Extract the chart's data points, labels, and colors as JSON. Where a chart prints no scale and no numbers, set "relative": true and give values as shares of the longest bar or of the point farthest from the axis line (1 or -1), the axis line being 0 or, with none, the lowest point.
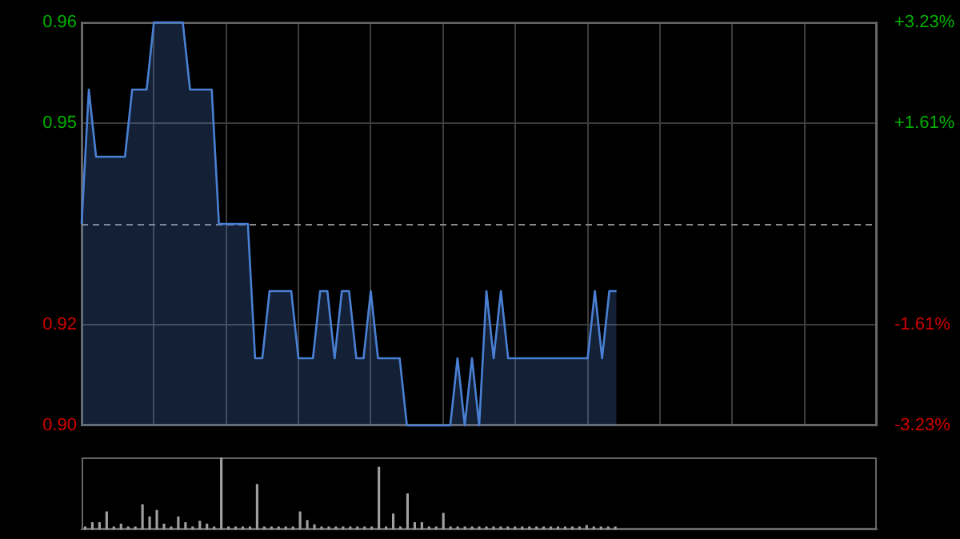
{
  "chart_data": [
    {
      "type": "area",
      "categories": [
        null,
        null,
        null,
        null,
        null,
        null,
        null,
        null,
        null,
        null,
        null,
        null,
        null,
        null,
        null,
        null,
        null,
        null,
        null,
        null,
        null,
        null,
        null,
        null,
        null,
        null,
        null,
        null,
        null,
        null,
        null,
        null,
        null,
        null,
        null,
        null,
        null,
        null,
        null,
        null,
        null,
        null,
        null,
        null,
        null,
        null,
        null,
        null,
        null,
        null,
        null,
        null,
        null,
        null,
        null,
        null,
        null,
        null,
        null,
        null,
        null,
        null,
        null,
        null,
        null,
        null,
        null,
        null,
        null,
        null,
        null,
        null,
        null,
        null,
        null,
        null,
        null,
        null,
        null,
        null,
        null,
        null,
        null,
        null,
        null,
        null,
        null,
        null,
        null,
        null,
        null,
        null,
        null,
        null,
        null,
        null,
        null,
        null,
        null,
        null,
        null,
        null,
        null,
        null,
        null,
        null,
        null,
        null,
        null,
        null,
        null
      ],
      "series": [
        {
          "color": "#4a80d4",
          "values": [
            0.93,
            0.95,
            0.94,
            0.94,
            0.94,
            0.94,
            0.94,
            0.95,
            0.95,
            0.95,
            0.96,
            0.96,
            0.96,
            0.96,
            0.96,
            0.95,
            0.95,
            0.95,
            0.95,
            0.93,
            0.93,
            0.93,
            0.93,
            0.93,
            0.91,
            0.91,
            0.92,
            0.92,
            0.92,
            0.92,
            0.91,
            0.91,
            0.91,
            0.92,
            0.92,
            0.91,
            0.92,
            0.92,
            0.91,
            0.91,
            0.92,
            0.91,
            0.91,
            0.91,
            0.91,
            0.9,
            0.9,
            0.9,
            0.9,
            0.9,
            0.9,
            0.9,
            0.91,
            0.9,
            0.91,
            0.9,
            0.92,
            0.91,
            0.92,
            0.91,
            0.91,
            0.91,
            0.91,
            0.91,
            0.91,
            0.91,
            0.91,
            0.91,
            0.91,
            0.91,
            0.91,
            0.92,
            0.91,
            0.92,
            0.92,
            null,
            null,
            null,
            null,
            null,
            null,
            null,
            null,
            null,
            null,
            null,
            null,
            null,
            null,
            null,
            null,
            null,
            null,
            null,
            null,
            null,
            null,
            null,
            null,
            null,
            null,
            null,
            null,
            null,
            null,
            null,
            null,
            null,
            null,
            null,
            null
          ]
        }
      ],
      "ylim": [
        0.9,
        0.96
      ],
      "yticks": [
        {
          "value": 0.96,
          "label": "0.96"
        },
        {
          "value": 0.945,
          "label": "0.95"
        },
        {
          "value": 0.915,
          "label": "0.92"
        },
        {
          "value": 0.9,
          "label": "0.90"
        }
      ],
      "y2lim": [
        -3.23,
        3.23
      ],
      "y2ticks": [
        {
          "value": 3.23,
          "label": "+3.23%"
        },
        {
          "value": 1.61,
          "label": "+1.61%"
        },
        {
          "value": -1.61,
          "label": "-1.61%"
        },
        {
          "value": -3.23,
          "label": "-3.23%"
        }
      ],
      "ref_lines": [
        {
          "axis": "y",
          "value": 0.93
        }
      ],
      "grid": true
    },
    {
      "type": "bar",
      "relative": true,
      "categories": [
        null,
        null,
        null,
        null,
        null,
        null,
        null,
        null,
        null,
        null,
        null,
        null,
        null,
        null,
        null,
        null,
        null,
        null,
        null,
        null,
        null,
        null,
        null,
        null,
        null,
        null,
        null,
        null,
        null,
        null,
        null,
        null,
        null,
        null,
        null,
        null,
        null,
        null,
        null,
        null,
        null,
        null,
        null,
        null,
        null,
        null,
        null,
        null,
        null,
        null,
        null,
        null,
        null,
        null,
        null,
        null,
        null,
        null,
        null,
        null,
        null,
        null,
        null,
        null,
        null,
        null,
        null,
        null,
        null,
        null,
        null,
        null,
        null,
        null,
        null,
        null,
        null,
        null,
        null,
        null,
        null,
        null,
        null,
        null,
        null,
        null,
        null,
        null,
        null,
        null,
        null,
        null,
        null,
        null,
        null,
        null,
        null,
        null,
        null,
        null,
        null,
        null,
        null,
        null,
        null,
        null,
        null,
        null,
        null,
        null,
        null
      ],
      "series": [
        {
          "color": "#a0a0a0",
          "values": [
            0.04,
            0.1,
            0.1,
            0.25,
            0.04,
            0.08,
            0.04,
            0.04,
            0.35,
            0.18,
            0.27,
            0.08,
            0.04,
            0.18,
            0.1,
            0.04,
            0.12,
            0.08,
            0.04,
            1,
            0.04,
            0.04,
            0.04,
            0.04,
            0.63,
            0.04,
            0.04,
            0.04,
            0.04,
            0.04,
            0.25,
            0.13,
            0.07,
            0.04,
            0.04,
            0.04,
            0.04,
            0.04,
            0.04,
            0.04,
            0.04,
            0.87,
            0.04,
            0.22,
            0.04,
            0.5,
            0.1,
            0.1,
            0.04,
            0.04,
            0.23,
            0.04,
            0.04,
            0.04,
            0.04,
            0.04,
            0.04,
            0.04,
            0.04,
            0.04,
            0.04,
            0.04,
            0.04,
            0.04,
            0.04,
            0.04,
            0.04,
            0.04,
            0.04,
            0.04,
            0.06,
            0.04,
            0.04,
            0.04,
            0.04,
            null,
            null,
            null,
            null,
            null,
            null,
            null,
            null,
            null,
            null,
            null,
            null,
            null,
            null,
            null,
            null,
            null,
            null,
            null,
            null,
            null,
            null,
            null,
            null,
            null,
            null,
            null,
            null,
            null,
            null,
            null,
            null,
            null,
            null,
            null,
            null
          ]
        }
      ]
    }
  ]
}
